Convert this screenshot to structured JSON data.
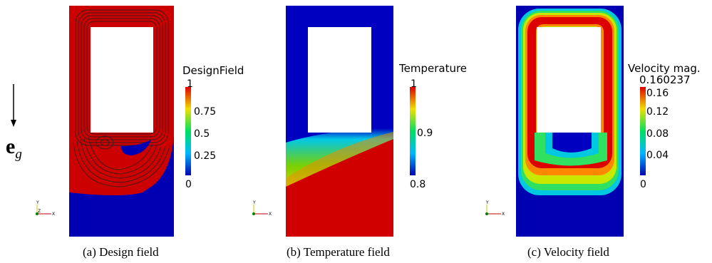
{
  "gravity": {
    "symbol": "e",
    "subscript": "g"
  },
  "panels": [
    {
      "id": "a",
      "caption": "(a) Design field",
      "colorbar": {
        "title": "DesignField",
        "ticks": [
          "1",
          "0.75",
          "0.5",
          "0.25",
          "0"
        ],
        "range": [
          0,
          1
        ]
      }
    },
    {
      "id": "b",
      "caption": "(b) Temperature field",
      "colorbar": {
        "title": "Temperature",
        "ticks": [
          "1",
          "0.9",
          "0.8"
        ],
        "range": [
          0.8,
          1
        ]
      }
    },
    {
      "id": "c",
      "caption": "(c) Velocity field",
      "colorbar": {
        "title": "Velocity mag.",
        "max_label": "0.160237",
        "ticks": [
          "0.16",
          "0.12",
          "0.08",
          "0.04",
          "0"
        ],
        "range": [
          0,
          0.160237
        ]
      }
    }
  ],
  "axes_triad": {
    "y": "Y",
    "z": "Z",
    "x": "X"
  },
  "colors": {
    "red": "#cc0000",
    "blue": "#0000b3",
    "white": "#ffffff"
  }
}
